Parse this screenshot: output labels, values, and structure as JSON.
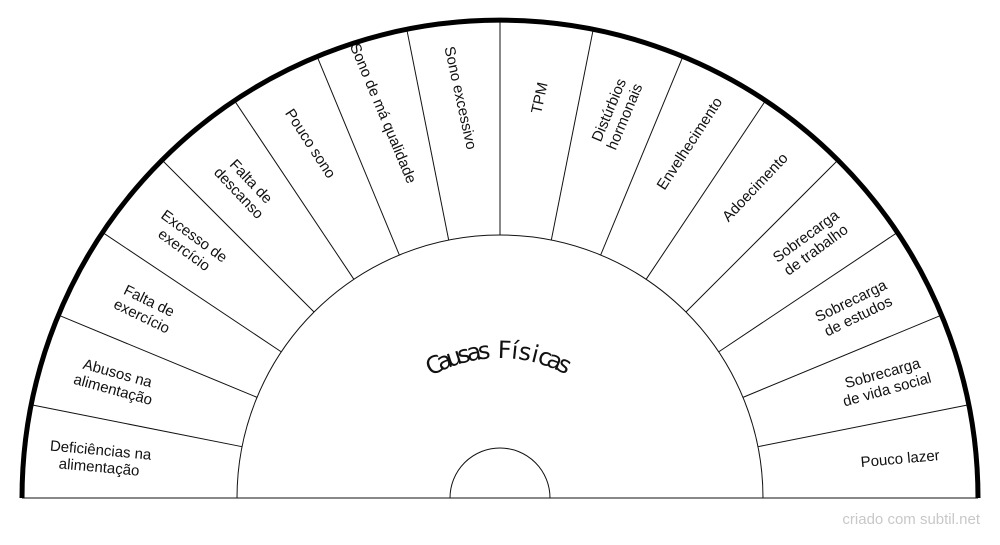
{
  "title": "Causas Físicas",
  "segments": [
    [
      "Deficiências na",
      "alimentação"
    ],
    [
      "Abusos na",
      "alimentação"
    ],
    [
      "Falta de",
      "exercício"
    ],
    [
      "Excesso de",
      "exercício"
    ],
    [
      "Falta de",
      "descanso"
    ],
    [
      "Pouco sono"
    ],
    [
      "Sono de má qualidade"
    ],
    [
      "Sono excessivo"
    ],
    [
      "TPM"
    ],
    [
      "Distúrbios",
      "hormonais"
    ],
    [
      "Envelhecimento"
    ],
    [
      "Adoecimento"
    ],
    [
      "Sobrecarga",
      "de trabalho"
    ],
    [
      "Sobrecarga",
      "de estudos"
    ],
    [
      "Sobrecarga",
      "de vida social"
    ],
    [
      "Pouco lazer"
    ]
  ],
  "credit": "criado com subtil.net"
}
